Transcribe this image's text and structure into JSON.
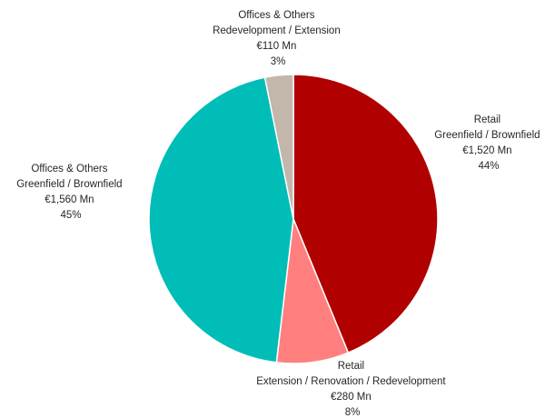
{
  "chart_data": {
    "type": "pie",
    "title": "",
    "start_angle_deg": 0,
    "direction": "clockwise",
    "slices": [
      {
        "category": "Retail",
        "subcategory": "Greenfield / Brownfield",
        "value_label": "€1,520 Mn",
        "percent_label": "44%",
        "value": 1520,
        "color": "#b00000"
      },
      {
        "category": "Retail",
        "subcategory": "Extension / Renovation / Redevelopment",
        "value_label": "€280 Mn",
        "percent_label": "8%",
        "value": 280,
        "color": "#ff7f7f"
      },
      {
        "category": "Offices & Others",
        "subcategory": "Greenfield / Brownfield",
        "value_label": "€1,560 Mn",
        "percent_label": "45%",
        "value": 1560,
        "color": "#00bdb7"
      },
      {
        "category": "Offices & Others",
        "subcategory": "Redevelopment / Extension",
        "value_label": "€110 Mn",
        "percent_label": "3%",
        "value": 110,
        "color": "#c3b6ab"
      }
    ]
  }
}
